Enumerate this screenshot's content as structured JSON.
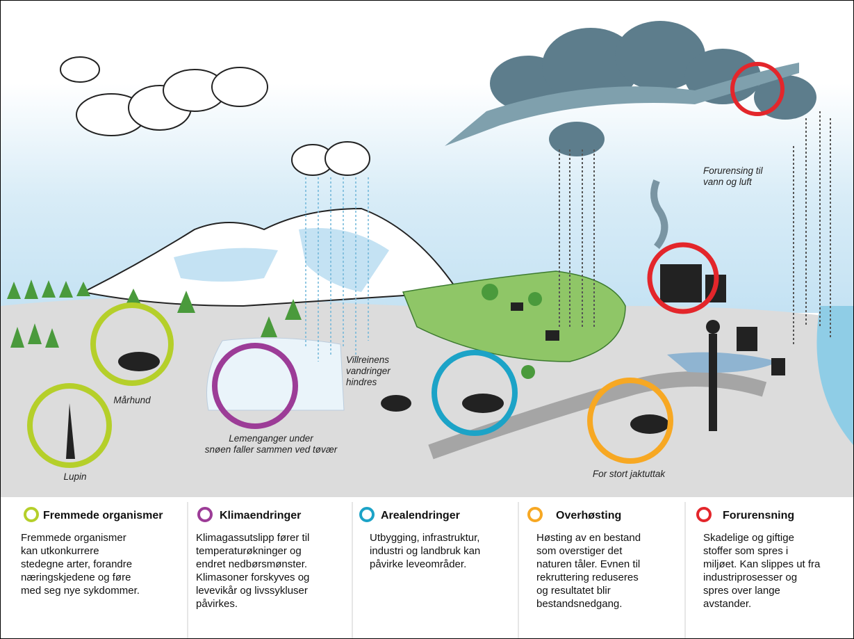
{
  "scene_labels": {
    "marhund": [
      "Mårhund"
    ],
    "lupin": [
      "Lupin"
    ],
    "lemen": [
      "Lemenganger under",
      "snøen faller sammen ved tøvær"
    ],
    "villrein": [
      "Villreinens",
      "vandringer",
      "hindres"
    ],
    "jakt": [
      "For stort jaktuttak"
    ],
    "forurensing": [
      "Forurensing til",
      "vann og luft"
    ]
  },
  "legend": [
    {
      "title": "Fremmede organismer",
      "color": "#b5cf2a",
      "lines": [
        "Fremmede organismer",
        "kan utkonkurrere",
        "stedegne arter, forandre",
        "næringskjedene og føre",
        "med seg nye sykdommer."
      ]
    },
    {
      "title": "Klimaendringer",
      "color": "#9c3c97",
      "lines": [
        "Klimagassutslipp fører til",
        "temperaturøkninger og",
        "endret nedbørsmønster.",
        "Klimasoner forskyves og",
        "levevikår og livssykluser",
        "påvirkes."
      ]
    },
    {
      "title": "Arealendringer",
      "color": "#1ca3c7",
      "lines": [
        "Utbygging, infrastruktur,",
        "industri og landbruk kan",
        "påvirke leveområder."
      ]
    },
    {
      "title": "Overhøsting",
      "color": "#f7a823",
      "lines": [
        "Høsting av en bestand",
        "som overstiger det",
        "naturen tåler. Evnen til",
        "rekruttering reduseres",
        "og resultatet blir",
        "bestandsnedgang."
      ]
    },
    {
      "title": "Forurensning",
      "color": "#e3262b",
      "lines": [
        "Skadelige og giftige",
        "stoffer som spres i",
        "miljøet. Kan slippes ut fra",
        "industriprosesser og",
        "spres over lange",
        "avstander."
      ]
    }
  ]
}
